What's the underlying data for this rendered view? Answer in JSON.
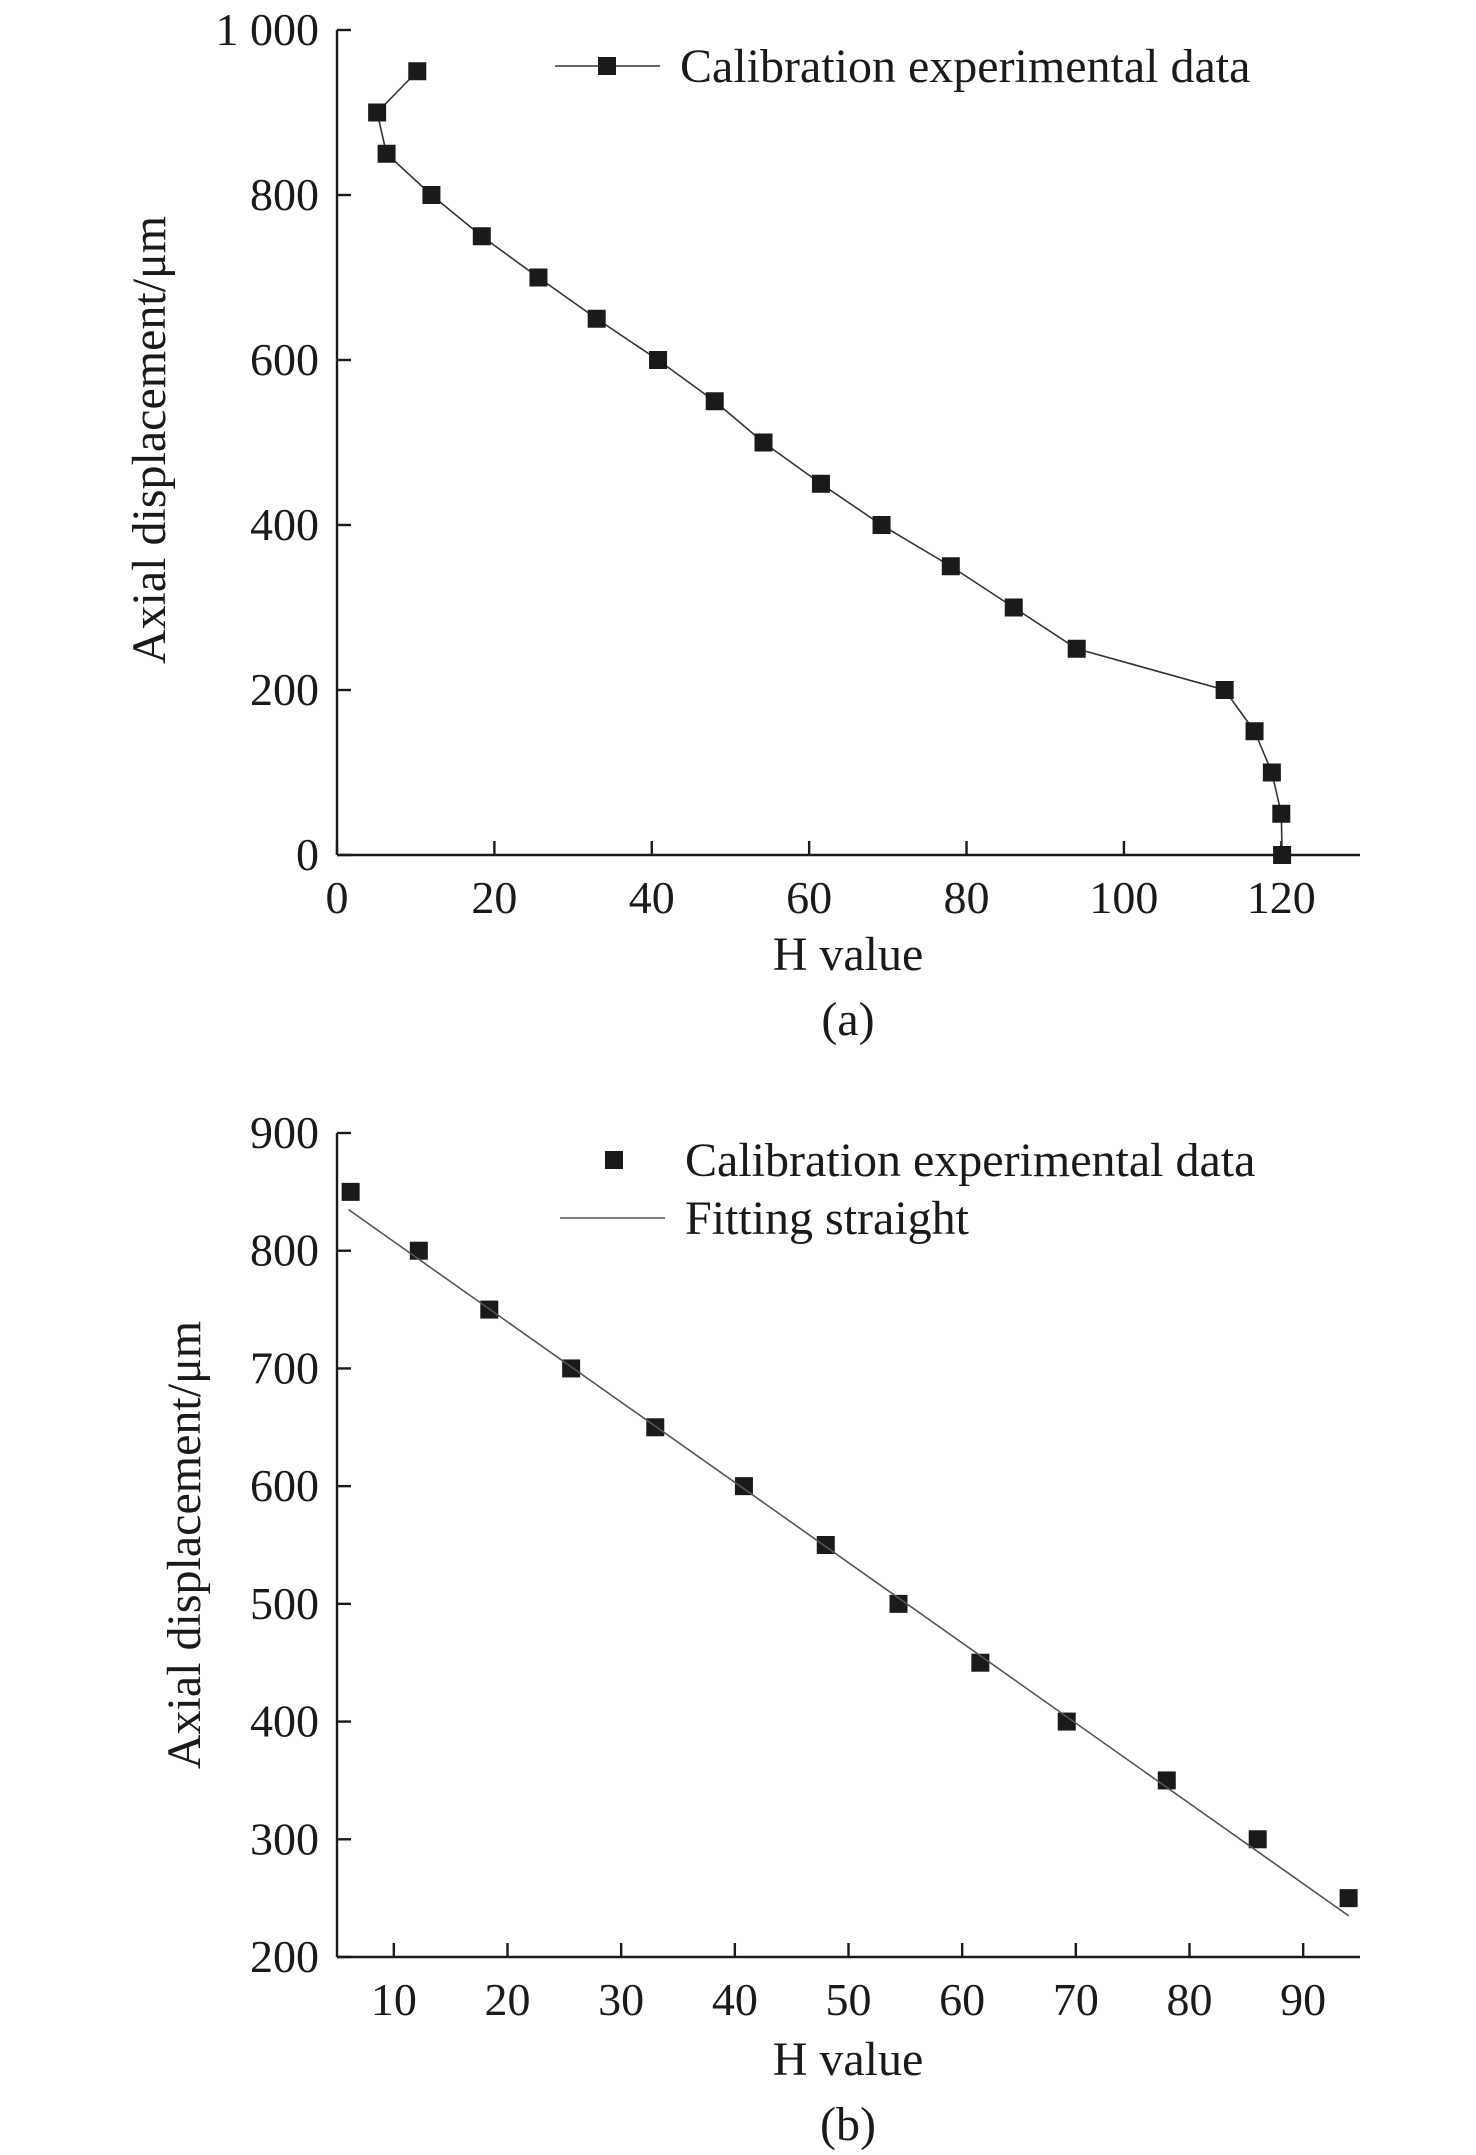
{
  "chart_data": [
    {
      "type": "line",
      "panel_label": "(a)",
      "xlabel": "H value",
      "ylabel": "Axial displacement/μm",
      "xlim": [
        0,
        130
      ],
      "ylim": [
        0,
        1000
      ],
      "xticks": [
        0,
        20,
        40,
        60,
        80,
        100,
        120
      ],
      "xtick_labels": [
        "0",
        "20",
        "40",
        "60",
        "80",
        "100",
        "120"
      ],
      "yticks": [
        0,
        200,
        400,
        600,
        800,
        1000
      ],
      "ytick_labels": [
        "0",
        "200",
        "400",
        "600",
        "800",
        "1 000"
      ],
      "legend_position": "top-right",
      "series": [
        {
          "name": "Calibration experimental data",
          "marker": "square",
          "line": true,
          "color": "#1a1a1a",
          "x": [
            10.2,
            5.1,
            6.3,
            12.0,
            18.4,
            25.6,
            33.0,
            40.8,
            48.0,
            54.2,
            61.5,
            69.2,
            78.0,
            86.0,
            94.0,
            112.8,
            116.6,
            118.8,
            120.0,
            120.1
          ],
          "y": [
            950,
            900,
            850,
            800,
            750,
            700,
            650,
            600,
            550,
            500,
            450,
            400,
            350,
            300,
            250,
            200,
            150,
            100,
            50,
            0
          ]
        }
      ]
    },
    {
      "type": "scatter",
      "panel_label": "(b)",
      "xlabel": "H value",
      "ylabel": "Axial displacement/μm",
      "xlim": [
        5,
        95
      ],
      "ylim": [
        200,
        900
      ],
      "xticks": [
        10,
        20,
        30,
        40,
        50,
        60,
        70,
        80,
        90
      ],
      "xtick_labels": [
        "10",
        "20",
        "30",
        "40",
        "50",
        "60",
        "70",
        "80",
        "90"
      ],
      "yticks": [
        200,
        300,
        400,
        500,
        600,
        700,
        800,
        900
      ],
      "ytick_labels": [
        "200",
        "300",
        "400",
        "500",
        "600",
        "700",
        "800",
        "900"
      ],
      "legend_position": "top-right",
      "series": [
        {
          "name": "Calibration experimental data",
          "marker": "square",
          "line": false,
          "color": "#1a1a1a",
          "x": [
            6.2,
            12.2,
            18.4,
            25.6,
            33.0,
            40.8,
            48.0,
            54.4,
            61.6,
            69.2,
            78.0,
            86.0,
            94.0
          ],
          "y": [
            850,
            800,
            750,
            700,
            650,
            600,
            550,
            500,
            450,
            400,
            350,
            300,
            250
          ]
        },
        {
          "name": "Fitting straight",
          "marker": "none",
          "line": true,
          "color": "#555555",
          "x": [
            6.0,
            94.0
          ],
          "y": [
            835,
            235
          ]
        }
      ]
    }
  ]
}
